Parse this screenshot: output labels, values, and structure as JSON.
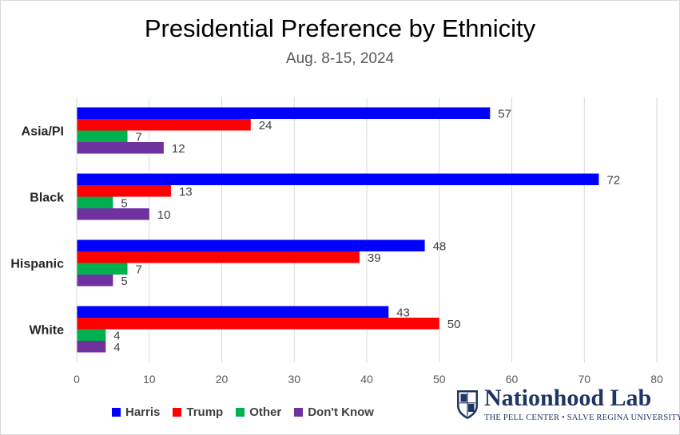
{
  "chart_data": {
    "type": "bar",
    "orientation": "horizontal",
    "title": "Presidential Preference by Ethnicity",
    "subtitle": "Aug. 8-15, 2024",
    "categories": [
      "Asia/PI",
      "Black",
      "Hispanic",
      "White"
    ],
    "series": [
      {
        "name": "Harris",
        "color": "#0000ff",
        "values": [
          57,
          72,
          48,
          43
        ]
      },
      {
        "name": "Trump",
        "color": "#ff0000",
        "values": [
          24,
          13,
          39,
          50
        ]
      },
      {
        "name": "Other",
        "color": "#00b050",
        "values": [
          7,
          5,
          7,
          4
        ]
      },
      {
        "name": "Don't Know",
        "color": "#7030a0",
        "values": [
          12,
          10,
          5,
          4
        ]
      }
    ],
    "xlim": [
      0,
      80
    ],
    "xticks": [
      0,
      10,
      20,
      30,
      40,
      50,
      60,
      70,
      80
    ],
    "grid": true,
    "legend": "bottom-left"
  },
  "logo": {
    "name": "Nationhood Lab",
    "tagline": "THE PELL CENTER • SALVE REGINA UNIVERSITY",
    "color": "#1f3564"
  }
}
